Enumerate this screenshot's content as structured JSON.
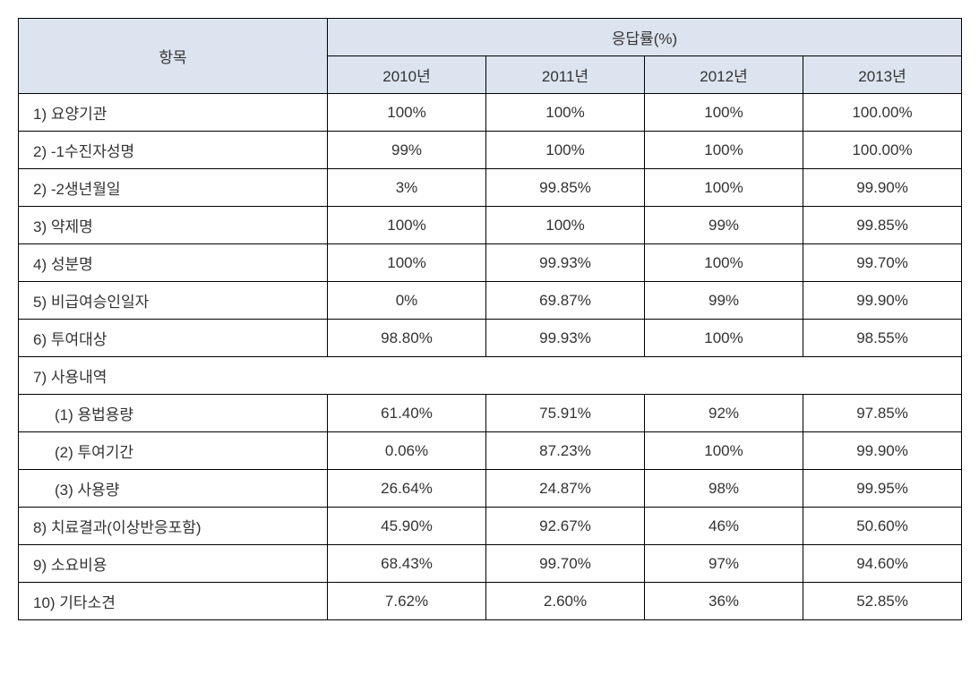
{
  "table": {
    "header": {
      "row_label": "항목",
      "group_label": "응답률(%)",
      "years": [
        "2010년",
        "2011년",
        "2012년",
        "2013년"
      ]
    },
    "rows": [
      {
        "label": "1) 요양기관",
        "indent": false,
        "values": [
          "100%",
          "100%",
          "100%",
          "100.00%"
        ]
      },
      {
        "label": "2) -1수진자성명",
        "indent": false,
        "values": [
          "99%",
          "100%",
          "100%",
          "100.00%"
        ]
      },
      {
        "label": "2) -2생년월일",
        "indent": false,
        "values": [
          "3%",
          "99.85%",
          "100%",
          "99.90%"
        ]
      },
      {
        "label": "3) 약제명",
        "indent": false,
        "values": [
          "100%",
          "100%",
          "99%",
          "99.85%"
        ]
      },
      {
        "label": "4) 성분명",
        "indent": false,
        "values": [
          "100%",
          "99.93%",
          "100%",
          "99.70%"
        ]
      },
      {
        "label": "5) 비급여승인일자",
        "indent": false,
        "values": [
          "0%",
          "69.87%",
          "99%",
          "99.90%"
        ]
      },
      {
        "label": "6) 투여대상",
        "indent": false,
        "values": [
          "98.80%",
          "99.93%",
          "100%",
          "98.55%"
        ]
      },
      {
        "label": "7) 사용내역",
        "indent": false,
        "section": true
      },
      {
        "label": "(1) 용법용량",
        "indent": true,
        "values": [
          "61.40%",
          "75.91%",
          "92%",
          "97.85%"
        ]
      },
      {
        "label": "(2) 투여기간",
        "indent": true,
        "values": [
          "0.06%",
          "87.23%",
          "100%",
          "99.90%"
        ]
      },
      {
        "label": "(3) 사용량",
        "indent": true,
        "values": [
          "26.64%",
          "24.87%",
          "98%",
          "99.95%"
        ]
      },
      {
        "label": "8) 치료결과(이상반응포함)",
        "indent": false,
        "values": [
          "45.90%",
          "92.67%",
          "46%",
          "50.60%"
        ]
      },
      {
        "label": "9) 소요비용",
        "indent": false,
        "values": [
          "68.43%",
          "99.70%",
          "97%",
          "94.60%"
        ]
      },
      {
        "label": "10) 기타소견",
        "indent": false,
        "values": [
          "7.62%",
          "2.60%",
          "36%",
          "52.85%"
        ]
      }
    ],
    "colors": {
      "header_bg": "#dce4f0",
      "border": "#000000",
      "text": "#333333",
      "background": "#ffffff"
    }
  }
}
